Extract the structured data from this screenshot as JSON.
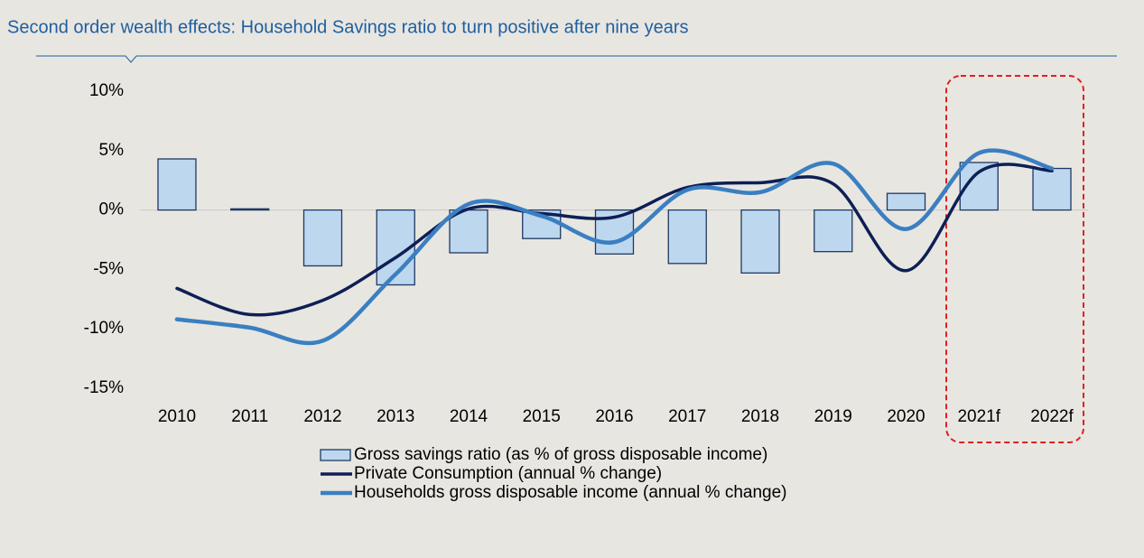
{
  "chart_data": {
    "type": "bar_line",
    "title": "Second order wealth effects: Household Savings ratio to turn positive after nine years",
    "categories": [
      "2010",
      "2011",
      "2012",
      "2013",
      "2014",
      "2015",
      "2016",
      "2017",
      "2018",
      "2019",
      "2020",
      "2021f",
      "2022f"
    ],
    "series": [
      {
        "name": "Gross savings ratio (as % of gross disposable income)",
        "type": "bar",
        "color": "#bdd7ee",
        "edge": "#1f3864",
        "values": [
          4.3,
          0.1,
          -4.7,
          -6.3,
          -3.6,
          -2.4,
          -3.7,
          -4.5,
          -5.3,
          -3.5,
          1.4,
          4.0,
          3.5
        ]
      },
      {
        "name": "Private Consumption (annual % change)",
        "type": "line",
        "color": "#0d1f55",
        "values": [
          -6.6,
          -8.8,
          -7.6,
          -4.0,
          0.1,
          -0.3,
          -0.6,
          1.9,
          2.3,
          2.2,
          -5.1,
          3.2,
          3.3
        ]
      },
      {
        "name": "Households gross disposable income (annual % change)",
        "type": "line",
        "color": "#3a7fc1",
        "values": [
          -9.2,
          -9.9,
          -11.0,
          -5.4,
          0.5,
          -0.5,
          -2.7,
          1.7,
          1.5,
          3.9,
          -1.6,
          4.8,
          3.5
        ]
      }
    ],
    "ylim": [
      -15,
      10
    ],
    "yticks": [
      {
        "value": 10,
        "label": "10%"
      },
      {
        "value": 5,
        "label": "5%"
      },
      {
        "value": 0,
        "label": "0%"
      },
      {
        "value": -5,
        "label": "-5%"
      },
      {
        "value": -10,
        "label": "-10%"
      },
      {
        "value": -15,
        "label": "-15%"
      }
    ],
    "grid": false
  }
}
